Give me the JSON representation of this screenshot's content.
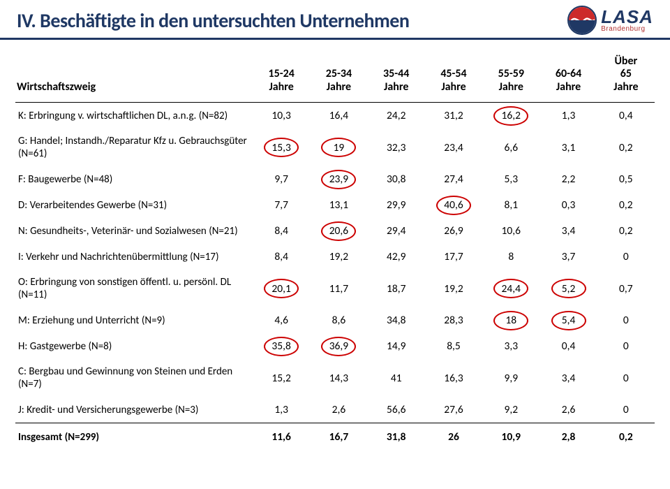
{
  "title": "IV. Beschäftigte in den untersuchten Unternehmen",
  "logo": {
    "main": "LASA",
    "sub": "Brandenburg"
  },
  "columns": [
    {
      "label": "Wirtschaftszweig"
    },
    {
      "label": "15-24\nJahre"
    },
    {
      "label": "25-34\nJahre"
    },
    {
      "label": "35-44\nJahre"
    },
    {
      "label": "45-54\nJahre"
    },
    {
      "label": "55-59\nJahre"
    },
    {
      "label": "60-64\nJahre"
    },
    {
      "label": "Über\n65\nJahre"
    }
  ],
  "rows": [
    {
      "label": "K: Erbringung v. wirtschaftlichen DL, a.n.g. (N=82)",
      "cells": [
        {
          "v": "10,3"
        },
        {
          "v": "16,4"
        },
        {
          "v": "24,2"
        },
        {
          "v": "31,2"
        },
        {
          "v": "16,2",
          "c": true
        },
        {
          "v": "1,3"
        },
        {
          "v": "0,4"
        }
      ]
    },
    {
      "label": "G: Handel; Instandh./Reparatur Kfz u. Gebrauchsgüter (N=61)",
      "cells": [
        {
          "v": "15,3",
          "c": true
        },
        {
          "v": "19",
          "c": true
        },
        {
          "v": "32,3"
        },
        {
          "v": "23,4"
        },
        {
          "v": "6,6"
        },
        {
          "v": "3,1"
        },
        {
          "v": "0,2"
        }
      ]
    },
    {
      "label": "F: Baugewerbe (N=48)",
      "cells": [
        {
          "v": "9,7"
        },
        {
          "v": "23,9",
          "c": true
        },
        {
          "v": "30,8"
        },
        {
          "v": "27,4"
        },
        {
          "v": "5,3"
        },
        {
          "v": "2,2"
        },
        {
          "v": "0,5"
        }
      ]
    },
    {
      "label": "D: Verarbeitendes Gewerbe (N=31)",
      "cells": [
        {
          "v": "7,7"
        },
        {
          "v": "13,1"
        },
        {
          "v": "29,9"
        },
        {
          "v": "40,6",
          "c": true
        },
        {
          "v": "8,1"
        },
        {
          "v": "0,3"
        },
        {
          "v": "0,2"
        }
      ]
    },
    {
      "label": "N: Gesundheits-, Veterinär- und Sozialwesen (N=21)",
      "cells": [
        {
          "v": "8,4"
        },
        {
          "v": "20,6",
          "c": true
        },
        {
          "v": "29,4"
        },
        {
          "v": "26,9"
        },
        {
          "v": "10,6"
        },
        {
          "v": "3,4"
        },
        {
          "v": "0,2"
        }
      ]
    },
    {
      "label": "I: Verkehr und Nachrichtenübermittlung (N=17)",
      "cells": [
        {
          "v": "8,4"
        },
        {
          "v": "19,2"
        },
        {
          "v": "42,9"
        },
        {
          "v": "17,7"
        },
        {
          "v": "8"
        },
        {
          "v": "3,7"
        },
        {
          "v": "0"
        }
      ]
    },
    {
      "label": "O: Erbringung von sonstigen öffentl. u. persönl. DL (N=11)",
      "cells": [
        {
          "v": "20,1",
          "c": true
        },
        {
          "v": "11,7"
        },
        {
          "v": "18,7"
        },
        {
          "v": "19,2"
        },
        {
          "v": "24,4",
          "c": true
        },
        {
          "v": "5,2",
          "c": true
        },
        {
          "v": "0,7"
        }
      ]
    },
    {
      "label": "M: Erziehung und Unterricht (N=9)",
      "cells": [
        {
          "v": "4,6"
        },
        {
          "v": "8,6"
        },
        {
          "v": "34,8"
        },
        {
          "v": "28,3"
        },
        {
          "v": "18",
          "c": true
        },
        {
          "v": "5,4",
          "c": true
        },
        {
          "v": "0"
        }
      ]
    },
    {
      "label": "H: Gastgewerbe (N=8)",
      "cells": [
        {
          "v": "35,8",
          "c": true
        },
        {
          "v": "36,9",
          "c": true
        },
        {
          "v": "14,9"
        },
        {
          "v": "8,5"
        },
        {
          "v": "3,3"
        },
        {
          "v": "0,4"
        },
        {
          "v": "0"
        }
      ]
    },
    {
      "label": "C: Bergbau und Gewinnung von Steinen und Erden (N=7)",
      "cells": [
        {
          "v": "15,2"
        },
        {
          "v": "14,3"
        },
        {
          "v": "41"
        },
        {
          "v": "16,3"
        },
        {
          "v": "9,9"
        },
        {
          "v": "3,4"
        },
        {
          "v": "0"
        }
      ]
    },
    {
      "label": "J: Kredit- und Versicherungsgewerbe (N=3)",
      "cells": [
        {
          "v": "1,3"
        },
        {
          "v": "2,6"
        },
        {
          "v": "56,6"
        },
        {
          "v": "27,6"
        },
        {
          "v": "9,2"
        },
        {
          "v": "2,6"
        },
        {
          "v": "0"
        }
      ]
    }
  ],
  "total_row": {
    "label": "Insgesamt (N=299)",
    "cells": [
      {
        "v": "11,6"
      },
      {
        "v": "16,7"
      },
      {
        "v": "31,8"
      },
      {
        "v": "26"
      },
      {
        "v": "10,9"
      },
      {
        "v": "2,8"
      },
      {
        "v": "0,2"
      }
    ]
  },
  "style": {
    "circle_border_color": "#cc0000",
    "title_color": "#1f3864",
    "header_rule_color": "#203864"
  }
}
